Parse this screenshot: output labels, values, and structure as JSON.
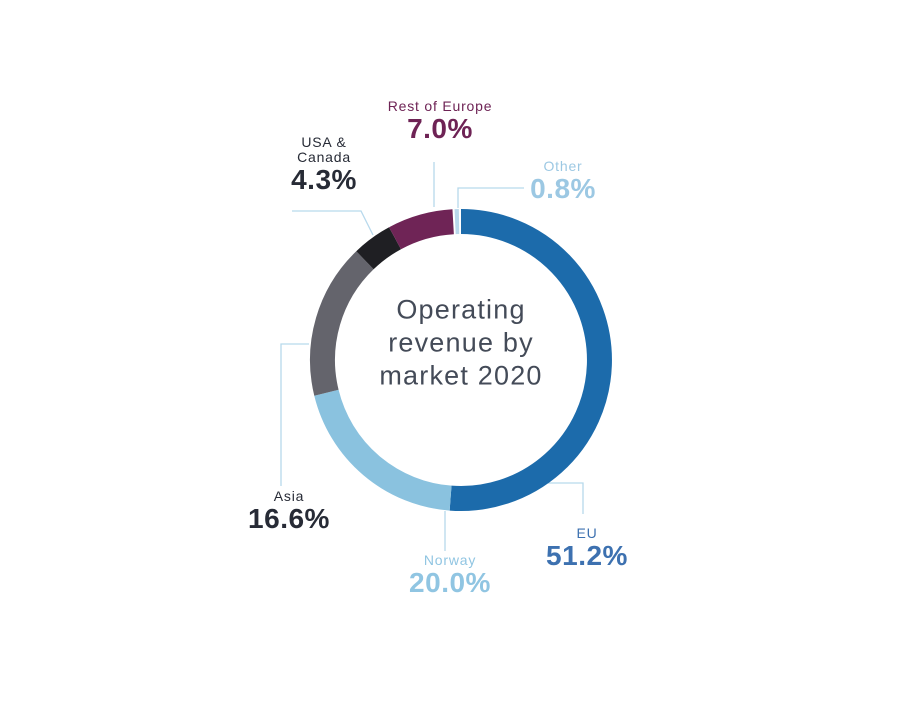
{
  "chart_data": {
    "type": "pie",
    "subtype": "donut",
    "title": "Operating revenue by market 2020",
    "title_lines": [
      "Operating",
      "revenue by",
      "market 2020"
    ],
    "title_color": "#444b58",
    "leader_line_color": "#b7d9ec",
    "background_color": "#ffffff",
    "segments": [
      {
        "label": "EU",
        "value": 51.2,
        "value_label": "51.2%",
        "color": "#1c6bab",
        "label_color": "#3d71b0"
      },
      {
        "label": "Norway",
        "value": 20.0,
        "value_label": "20.0%",
        "color": "#8ac2df",
        "label_color": "#90c5e2"
      },
      {
        "label": "Asia",
        "value": 16.6,
        "value_label": "16.6%",
        "color": "#64646c",
        "label_color": "#272b36"
      },
      {
        "label": "USA & Canada",
        "label_lines": [
          "USA &",
          "Canada"
        ],
        "value": 4.3,
        "value_label": "4.3%",
        "color": "#1f1f23",
        "label_color": "#272b36"
      },
      {
        "label": "Rest of Europe",
        "value": 7.0,
        "value_label": "7.0%",
        "color": "#6f2456",
        "label_color": "#6e2355"
      },
      {
        "label": "Other",
        "value": 0.8,
        "value_label": "0.8%",
        "color": "#b9d8eb",
        "label_color": "#9cc8e3",
        "separated": true
      }
    ]
  }
}
